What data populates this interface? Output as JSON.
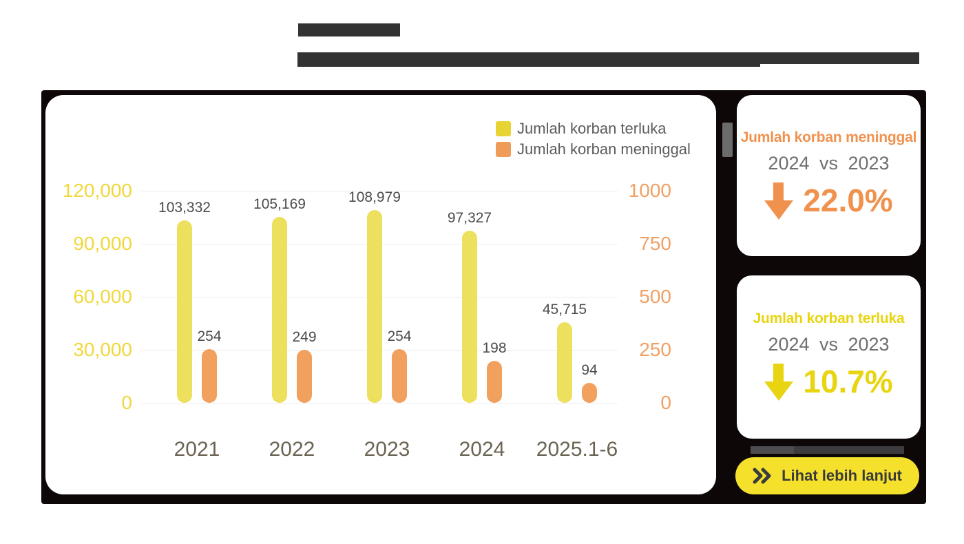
{
  "colors": {
    "panel": "#0d0708",
    "redacted": "#333333",
    "gridline": "#ececec",
    "bar_yellow": "#ece05e",
    "bar_orange": "#f2a05e",
    "axis_yellow": "#f0d73c",
    "axis_orange": "#f09f63",
    "value_label": "#4c4c4c",
    "category_label": "#6b6353",
    "button_yellow": "#f5e12c",
    "button_text": "#3a3a3c"
  },
  "legend": {
    "items": [
      {
        "label": "Jumlah korban terluka",
        "color": "#e7d334"
      },
      {
        "label": "Jumlah korban meninggal",
        "color": "#ef9c59"
      }
    ]
  },
  "chart_data": {
    "type": "bar",
    "categories": [
      "2021",
      "2022",
      "2023",
      "2024",
      "2025.1-6"
    ],
    "series": [
      {
        "name": "Jumlah korban terluka",
        "axis": "left",
        "color": "#ece05e",
        "values": [
          103332,
          105169,
          108979,
          97327,
          45715
        ],
        "labels": [
          "103,332",
          "105,169",
          "108,979",
          "97,327",
          "45,715"
        ]
      },
      {
        "name": "Jumlah korban meninggal",
        "axis": "right",
        "color": "#f2a05e",
        "values": [
          254,
          249,
          254,
          198,
          94
        ],
        "labels": [
          "254",
          "249",
          "254",
          "198",
          "94"
        ]
      }
    ],
    "left_axis": {
      "range": [
        0,
        120000
      ],
      "ticks": [
        0,
        30000,
        60000,
        90000,
        120000
      ],
      "tick_labels": [
        "0",
        "30,000",
        "60,000",
        "90,000",
        "120,000"
      ],
      "color": "#f0d73c"
    },
    "right_axis": {
      "range": [
        0,
        1000
      ],
      "ticks": [
        0,
        250,
        500,
        750,
        1000
      ],
      "tick_labels": [
        "0",
        "250",
        "500",
        "750",
        "1000"
      ],
      "color": "#f09f63"
    },
    "grid": true,
    "legend_position": "top-right"
  },
  "stat_cards": [
    {
      "title": "Jumlah korban meninggal",
      "compare": "2024 vs 2023",
      "direction": "down",
      "value": "22.0%",
      "accent": "#f0924e"
    },
    {
      "title": "Jumlah korban terluka",
      "compare": "2024 vs 2023",
      "direction": "down",
      "value": "10.7%",
      "accent": "#e8d410"
    }
  ],
  "button": {
    "label": "Lihat lebih lanjut"
  }
}
